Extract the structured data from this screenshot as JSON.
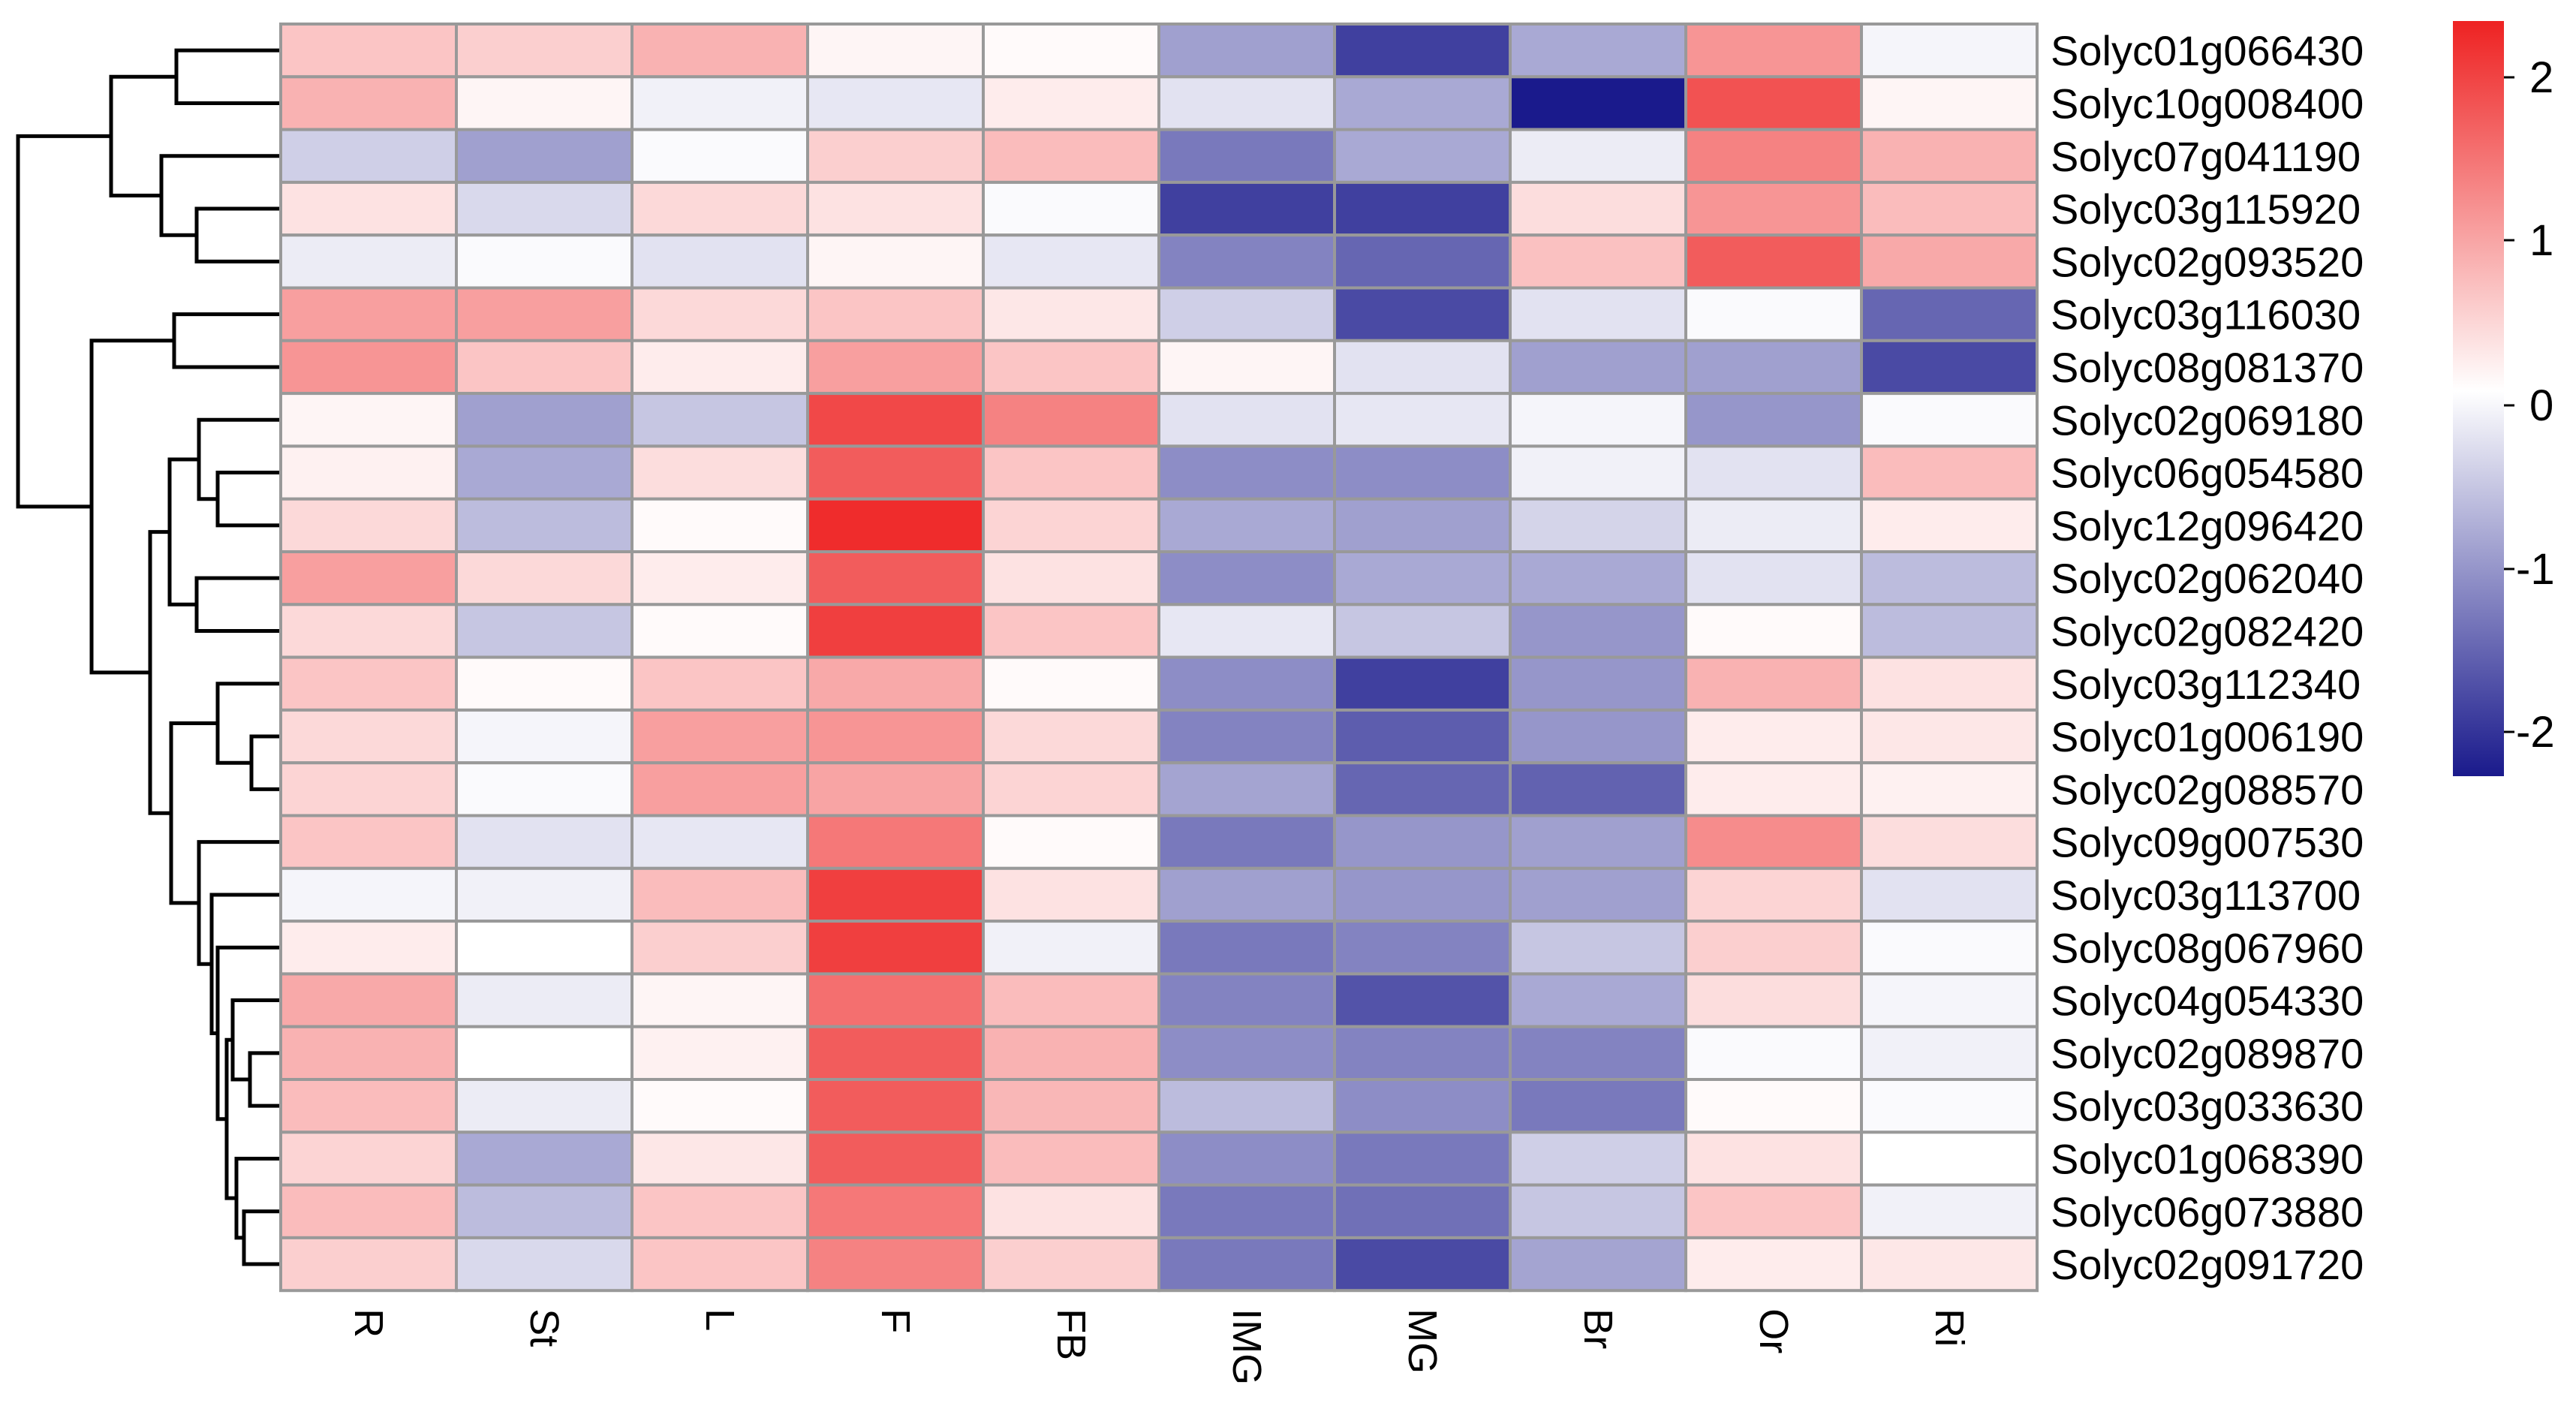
{
  "chart_data": {
    "type": "heatmap",
    "title": "",
    "columns": [
      "R",
      "St",
      "L",
      "F",
      "FB",
      "IMG",
      "MG",
      "Br",
      "Or",
      "Ri"
    ],
    "rows": [
      "Solyc01g066430",
      "Solyc10g008400",
      "Solyc07g041190",
      "Solyc03g115920",
      "Solyc02g093520",
      "Solyc03g116030",
      "Solyc08g081370",
      "Solyc02g069180",
      "Solyc06g054580",
      "Solyc12g096420",
      "Solyc02g062040",
      "Solyc02g082420",
      "Solyc03g112340",
      "Solyc01g006190",
      "Solyc02g088570",
      "Solyc09g007530",
      "Solyc03g113700",
      "Solyc08g067960",
      "Solyc04g054330",
      "Solyc02g089870",
      "Solyc03g033630",
      "Solyc01g068390",
      "Solyc06g073880",
      "Solyc02g091720"
    ],
    "values": [
      [
        0.6,
        0.5,
        0.8,
        0.1,
        0.05,
        -1.0,
        -2.0,
        -0.9,
        1.1,
        -0.1
      ],
      [
        0.8,
        0.1,
        -0.15,
        -0.25,
        0.2,
        -0.3,
        -0.9,
        -2.4,
        1.8,
        0.1
      ],
      [
        -0.5,
        -1.0,
        -0.05,
        0.5,
        0.7,
        -1.4,
        -0.9,
        -0.2,
        1.3,
        0.8
      ],
      [
        0.3,
        -0.4,
        0.4,
        0.3,
        -0.05,
        -2.0,
        -2.0,
        0.35,
        1.1,
        0.7
      ],
      [
        -0.2,
        -0.05,
        -0.3,
        0.1,
        -0.25,
        -1.3,
        -1.6,
        0.65,
        1.7,
        0.9
      ],
      [
        1.0,
        1.0,
        0.4,
        0.6,
        0.25,
        -0.5,
        -1.9,
        -0.3,
        -0.05,
        -1.6
      ],
      [
        1.1,
        0.6,
        0.2,
        1.0,
        0.6,
        0.1,
        -0.3,
        -1.0,
        -1.0,
        -1.9
      ],
      [
        0.1,
        -1.0,
        -0.6,
        1.9,
        1.3,
        -0.3,
        -0.25,
        -0.1,
        -1.1,
        -0.05
      ],
      [
        0.15,
        -0.9,
        0.35,
        1.7,
        0.6,
        -1.2,
        -1.2,
        -0.15,
        -0.3,
        0.7
      ],
      [
        0.4,
        -0.7,
        0.05,
        2.2,
        0.45,
        -0.9,
        -1.0,
        -0.45,
        -0.2,
        0.2
      ],
      [
        1.0,
        0.4,
        0.2,
        1.7,
        0.3,
        -1.2,
        -0.9,
        -0.9,
        -0.3,
        -0.7
      ],
      [
        0.4,
        -0.6,
        0.05,
        2.0,
        0.6,
        -0.25,
        -0.6,
        -1.1,
        0.05,
        -0.7
      ],
      [
        0.6,
        0.05,
        0.6,
        0.9,
        0.05,
        -1.2,
        -2.0,
        -1.1,
        0.8,
        0.3
      ],
      [
        0.4,
        -0.1,
        1.0,
        1.1,
        0.4,
        -1.3,
        -1.7,
        -1.1,
        0.2,
        0.25
      ],
      [
        0.45,
        -0.05,
        1.0,
        0.95,
        0.45,
        -0.95,
        -1.6,
        -1.65,
        0.2,
        0.15
      ],
      [
        0.6,
        -0.3,
        -0.25,
        1.4,
        0.05,
        -1.4,
        -1.1,
        -1.0,
        1.2,
        0.35
      ],
      [
        -0.1,
        -0.15,
        0.7,
        2.0,
        0.3,
        -1.0,
        -1.1,
        -1.0,
        0.45,
        -0.3
      ],
      [
        0.2,
        0.0,
        0.5,
        2.0,
        -0.15,
        -1.4,
        -1.3,
        -0.6,
        0.5,
        -0.05
      ],
      [
        0.9,
        -0.2,
        0.1,
        1.5,
        0.7,
        -1.3,
        -1.8,
        -0.9,
        0.35,
        -0.1
      ],
      [
        0.8,
        0.0,
        0.15,
        1.7,
        0.8,
        -1.2,
        -1.3,
        -1.3,
        -0.05,
        -0.15
      ],
      [
        0.7,
        -0.2,
        0.05,
        1.7,
        0.75,
        -0.7,
        -1.2,
        -1.4,
        0.05,
        -0.05
      ],
      [
        0.45,
        -0.9,
        0.25,
        1.7,
        0.7,
        -1.2,
        -1.4,
        -0.5,
        0.3,
        0.0
      ],
      [
        0.7,
        -0.7,
        0.6,
        1.4,
        0.3,
        -1.4,
        -1.5,
        -0.6,
        0.6,
        -0.15
      ],
      [
        0.5,
        -0.4,
        0.6,
        1.3,
        0.5,
        -1.4,
        -1.9,
        -0.95,
        0.2,
        0.25
      ]
    ],
    "row_dendrogram": {
      "order": [
        0,
        1,
        2,
        3,
        4,
        5,
        6,
        7,
        8,
        9,
        10,
        11,
        12,
        13,
        14,
        15,
        16,
        17,
        18,
        19,
        20,
        21,
        22,
        23
      ],
      "merges": [
        [
          0,
          1,
          0.0
        ],
        [
          3,
          4,
          0.0
        ],
        [
          2,
          3,
          0.0
        ],
        [
          2,
          4,
          0.0
        ],
        [
          0,
          4,
          0.0
        ],
        [
          5,
          6,
          0.0
        ],
        [
          8,
          9,
          0.0
        ],
        [
          7,
          9,
          0.0
        ],
        [
          10,
          11,
          0.0
        ],
        [
          7,
          11,
          0.0
        ],
        [
          13,
          14,
          0.0
        ],
        [
          12,
          14,
          0.0
        ],
        [
          19,
          20,
          0.0
        ],
        [
          18,
          20,
          0.0
        ],
        [
          22,
          23,
          0.0
        ],
        [
          21,
          23,
          0.0
        ],
        [
          18,
          23,
          0.0
        ],
        [
          17,
          23,
          0.0
        ],
        [
          16,
          23,
          0.0
        ],
        [
          15,
          23,
          0.0
        ],
        [
          12,
          23,
          0.0
        ],
        [
          7,
          23,
          0.0
        ],
        [
          5,
          23,
          0.0
        ],
        [
          0,
          23,
          0.0
        ]
      ]
    },
    "color_scale": {
      "min": -2.4,
      "max": 2.3,
      "stops": [
        {
          "value": -2.4,
          "color": "#1a1a8c"
        },
        {
          "value": 0.0,
          "color": "#ffffff"
        },
        {
          "value": 2.3,
          "color": "#ee2222"
        }
      ],
      "ticks": [
        2,
        1,
        0,
        -1,
        -2
      ]
    },
    "tick_labels": {
      "t2": "2",
      "t1": "1",
      "t0": "0",
      "tm1": "-1",
      "tm2": "-2"
    },
    "grid_color": "#999999"
  }
}
